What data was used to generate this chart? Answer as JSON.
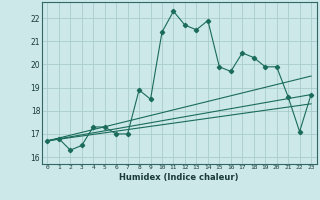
{
  "xlabel": "Humidex (Indice chaleur)",
  "bg_color": "#cce8e8",
  "grid_color": "#aacccc",
  "line_color": "#1a6b5a",
  "xlim": [
    -0.5,
    23.5
  ],
  "ylim": [
    15.7,
    22.7
  ],
  "yticks": [
    16,
    17,
    18,
    19,
    20,
    21,
    22
  ],
  "xticks": [
    0,
    1,
    2,
    3,
    4,
    5,
    6,
    7,
    8,
    9,
    10,
    11,
    12,
    13,
    14,
    15,
    16,
    17,
    18,
    19,
    20,
    21,
    22,
    23
  ],
  "series1_x": [
    0,
    1,
    2,
    3,
    4,
    5,
    6,
    7,
    8,
    9,
    10,
    11,
    12,
    13,
    14,
    15,
    16,
    17,
    18,
    19,
    20,
    21,
    22,
    23
  ],
  "series1_y": [
    16.7,
    16.8,
    16.3,
    16.5,
    17.3,
    17.3,
    17.0,
    17.0,
    18.9,
    18.5,
    21.4,
    22.3,
    21.7,
    21.5,
    21.9,
    19.9,
    19.7,
    20.5,
    20.3,
    19.9,
    19.9,
    18.6,
    17.1,
    18.7
  ],
  "series2_x": [
    0,
    23
  ],
  "series2_y": [
    16.7,
    18.3
  ],
  "series3_x": [
    0,
    23
  ],
  "series3_y": [
    16.7,
    18.7
  ],
  "series4_x": [
    0,
    23
  ],
  "series4_y": [
    16.7,
    19.5
  ]
}
